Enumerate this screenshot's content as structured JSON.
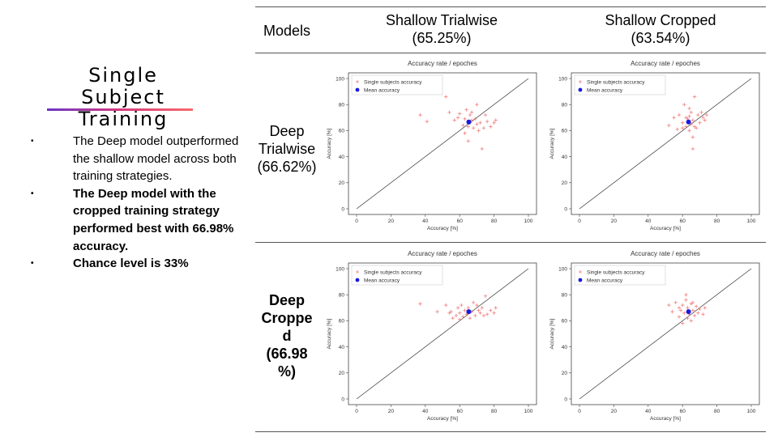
{
  "slide": {
    "title_lines": [
      "Single",
      "Subject",
      "Training"
    ],
    "bullets": [
      "The Deep model outperformed the shallow model across both training strategies.",
      "The Deep model with the cropped training strategy performed best with 66.98% accuracy.",
      "Chance level is 33%"
    ]
  },
  "table": {
    "corner_label": "Models",
    "col_headers": [
      {
        "line1": "Shallow Trialwise",
        "line2": "(65.25%)"
      },
      {
        "line1": "Shallow Cropped",
        "line2": "(63.54%)"
      }
    ],
    "row_headers": [
      {
        "lines": [
          "Deep",
          "Trialwise",
          "(66.62%)"
        ]
      },
      {
        "lines": [
          "Deep",
          "Croppe",
          "d",
          "(66.98",
          "%)"
        ]
      }
    ]
  },
  "colors": {
    "single": "#f07f7f",
    "mean": "#1a1adc",
    "diagonal": "#333333"
  },
  "chart_data": [
    {
      "type": "scatter",
      "id": "p1",
      "title": "Accuracy rate / epoches",
      "xlabel": "Accuracy [%]",
      "ylabel": "Accuracy [%]",
      "xlim": [
        0,
        100
      ],
      "ylim": [
        0,
        100
      ],
      "xticks": [
        0,
        20,
        40,
        60,
        80,
        100
      ],
      "yticks": [
        0,
        20,
        40,
        60,
        80,
        100
      ],
      "legend": [
        "Single subjects accuracy",
        "Mean accuracy"
      ],
      "legend_position": "top-left",
      "diagonal": true,
      "mean": [
        65.3,
        66.6
      ],
      "points": [
        [
          37,
          72
        ],
        [
          41,
          67
        ],
        [
          52,
          86
        ],
        [
          54,
          74
        ],
        [
          57,
          68
        ],
        [
          60,
          73
        ],
        [
          62,
          64
        ],
        [
          63,
          69
        ],
        [
          64,
          76
        ],
        [
          65,
          52
        ],
        [
          65,
          63
        ],
        [
          66,
          66
        ],
        [
          67,
          68
        ],
        [
          67,
          74
        ],
        [
          68,
          62
        ],
        [
          69,
          69
        ],
        [
          70,
          80
        ],
        [
          71,
          60
        ],
        [
          72,
          66
        ],
        [
          73,
          46
        ],
        [
          74,
          62
        ],
        [
          75,
          72
        ],
        [
          76,
          67
        ],
        [
          78,
          63
        ],
        [
          80,
          66
        ],
        [
          81,
          68
        ],
        [
          63,
          58
        ],
        [
          59,
          70
        ],
        [
          66,
          72
        ],
        [
          70,
          65
        ]
      ]
    },
    {
      "type": "scatter",
      "id": "p2",
      "title": "Accuracy rate / epoches",
      "xlabel": "Accuracy [%]",
      "ylabel": "Accuracy [%]",
      "xlim": [
        0,
        100
      ],
      "ylim": [
        0,
        100
      ],
      "xticks": [
        0,
        20,
        40,
        60,
        80,
        100
      ],
      "yticks": [
        0,
        20,
        40,
        60,
        80,
        100
      ],
      "legend": [
        "Single subjects accuracy",
        "Mean accuracy"
      ],
      "legend_position": "top-left",
      "diagonal": true,
      "mean": [
        63.5,
        66.6
      ],
      "points": [
        [
          52,
          64
        ],
        [
          55,
          70
        ],
        [
          57,
          61
        ],
        [
          58,
          72
        ],
        [
          60,
          66
        ],
        [
          61,
          80
        ],
        [
          62,
          70
        ],
        [
          62,
          63
        ],
        [
          63,
          69
        ],
        [
          64,
          77
        ],
        [
          64,
          60
        ],
        [
          65,
          65
        ],
        [
          65,
          74
        ],
        [
          66,
          68
        ],
        [
          66,
          55
        ],
        [
          67,
          63
        ],
        [
          67,
          86
        ],
        [
          68,
          62
        ],
        [
          69,
          72
        ],
        [
          70,
          66
        ],
        [
          71,
          74
        ],
        [
          72,
          70
        ],
        [
          73,
          68
        ],
        [
          74,
          72
        ],
        [
          66,
          46
        ],
        [
          60,
          62
        ],
        [
          64,
          71
        ]
      ]
    },
    {
      "type": "scatter",
      "id": "p3",
      "title": "Accuracy rate / epoches",
      "xlabel": "Accuracy [%]",
      "ylabel": "Accuracy [%]",
      "xlim": [
        0,
        100
      ],
      "ylim": [
        0,
        100
      ],
      "xticks": [
        0,
        20,
        40,
        60,
        80,
        100
      ],
      "yticks": [
        0,
        20,
        40,
        60,
        80,
        100
      ],
      "legend": [
        "Single subjects accuracy",
        "Mean accuracy"
      ],
      "legend_position": "top-left",
      "diagonal": true,
      "mean": [
        65.3,
        67.0
      ],
      "points": [
        [
          37,
          73
        ],
        [
          47,
          67
        ],
        [
          52,
          72
        ],
        [
          54,
          66
        ],
        [
          56,
          62
        ],
        [
          58,
          64
        ],
        [
          59,
          70
        ],
        [
          60,
          66
        ],
        [
          61,
          72
        ],
        [
          62,
          63
        ],
        [
          63,
          68
        ],
        [
          64,
          65
        ],
        [
          65,
          70
        ],
        [
          66,
          62
        ],
        [
          67,
          67
        ],
        [
          68,
          74
        ],
        [
          69,
          64
        ],
        [
          70,
          72
        ],
        [
          71,
          68
        ],
        [
          72,
          66
        ],
        [
          73,
          70
        ],
        [
          74,
          64
        ],
        [
          75,
          79
        ],
        [
          76,
          65
        ],
        [
          78,
          68
        ],
        [
          80,
          66
        ],
        [
          81,
          70
        ],
        [
          60,
          61
        ],
        [
          55,
          67
        ]
      ]
    },
    {
      "type": "scatter",
      "id": "p4",
      "title": "Accuracy rate / epoches",
      "xlabel": "Accuracy [%]",
      "ylabel": "Accuracy [%]",
      "xlim": [
        0,
        100
      ],
      "ylim": [
        0,
        100
      ],
      "xticks": [
        0,
        20,
        40,
        60,
        80,
        100
      ],
      "yticks": [
        0,
        20,
        40,
        60,
        80,
        100
      ],
      "legend": [
        "Single subjects accuracy",
        "Mean accuracy"
      ],
      "legend_position": "top-left",
      "diagonal": true,
      "mean": [
        63.5,
        67.0
      ],
      "points": [
        [
          52,
          72
        ],
        [
          54,
          67
        ],
        [
          56,
          74
        ],
        [
          58,
          63
        ],
        [
          59,
          68
        ],
        [
          60,
          72
        ],
        [
          61,
          66
        ],
        [
          62,
          76
        ],
        [
          63,
          62
        ],
        [
          63,
          70
        ],
        [
          64,
          65
        ],
        [
          65,
          73
        ],
        [
          65,
          60
        ],
        [
          66,
          68
        ],
        [
          67,
          64
        ],
        [
          68,
          71
        ],
        [
          69,
          66
        ],
        [
          70,
          69
        ],
        [
          72,
          65
        ],
        [
          73,
          70
        ],
        [
          62,
          80
        ],
        [
          60,
          58
        ],
        [
          66,
          74
        ],
        [
          58,
          70
        ]
      ]
    }
  ]
}
